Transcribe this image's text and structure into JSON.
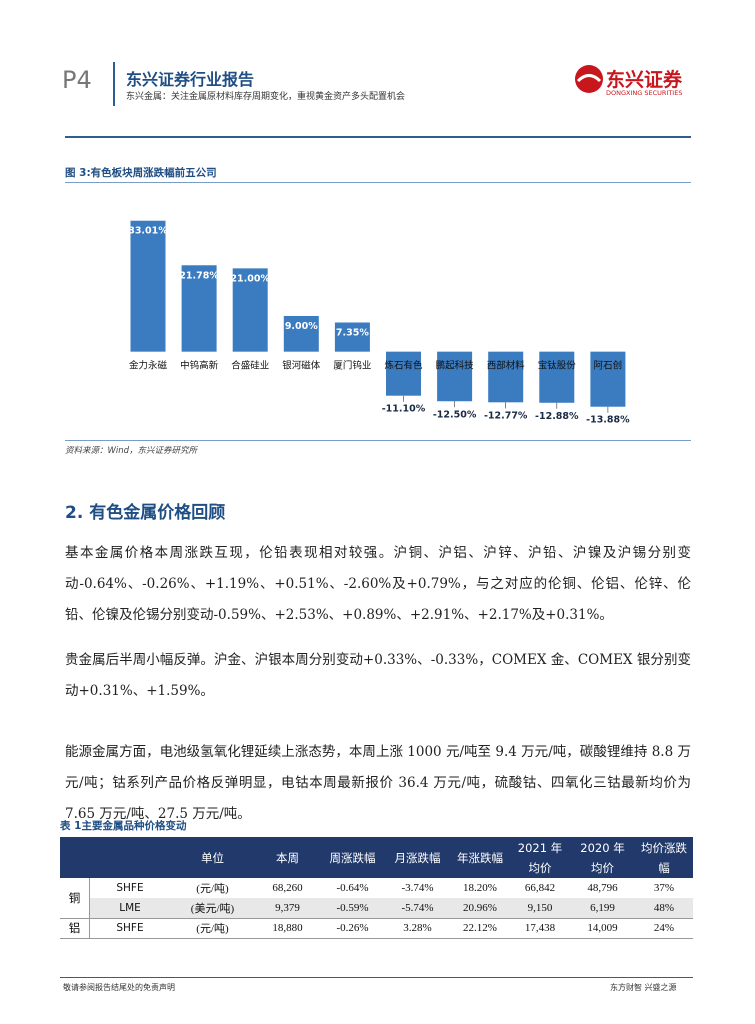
{
  "header": {
    "page": "P4",
    "title": "东兴证券行业报告",
    "subtitle": "东兴金属：关注金属原材料库存周期变化，重视黄金资产多头配置机会",
    "logo": "东兴证券",
    "logo_en": "DONGXING SECURITIES"
  },
  "figure": {
    "caption": "图 3:有色板块周涨跌幅前五公司",
    "source": "资料来源：Wind，东兴证券研究所",
    "chart_data": {
      "type": "bar",
      "categories": [
        "金力永磁",
        "中钨高新",
        "合盛硅业",
        "银河磁体",
        "厦门钨业",
        "炼石有色",
        "鹏起科技",
        "西部材料",
        "宝钛股份",
        "阿石创"
      ],
      "values": [
        33.01,
        21.78,
        21.0,
        9.0,
        7.35,
        -11.1,
        -12.5,
        -12.77,
        -12.88,
        -13.88
      ],
      "value_labels": [
        "33.01%",
        "21.78%",
        "21.00%",
        "9.00%",
        "7.35%",
        "-11.10%",
        "-12.50%",
        "-12.77%",
        "-12.88%",
        "-13.88%"
      ],
      "color": "#3b7bbf",
      "ylim": [
        -20,
        40
      ]
    }
  },
  "section": {
    "heading": "2. 有色金属价格回顾",
    "paragraphs": [
      "基本金属价格本周涨跌互现，伦铅表现相对较强。沪铜、沪铝、沪锌、沪铅、沪镍及沪锡分别变动-0.64%、-0.26%、+1.19%、+0.51%、-2.60%及+0.79%，与之对应的伦铜、伦铝、伦锌、伦铅、伦镍及伦锡分别变动-0.59%、+2.53%、+0.89%、+2.91%、+2.17%及+0.31%。",
      "贵金属后半周小幅反弹。沪金、沪银本周分别变动+0.33%、-0.33%，COMEX 金、COMEX 银分别变动+0.31%、+1.59%。",
      "能源金属方面，电池级氢氧化锂延续上涨态势，本周上涨 1000 元/吨至 9.4 万元/吨，碳酸锂维持 8.8 万元/吨；钴系列产品价格反弹明显，电钴本周最新报价 36.4 万元/吨，硫酸钴、四氧化三钴最新均价为 7.65 万元/吨、27.5 万元/吨。"
    ]
  },
  "table": {
    "caption": "表 1主要金属品种价格变动",
    "header": [
      "单位",
      "本周",
      "周涨跌幅",
      "月涨跌幅",
      "年涨跌幅",
      "2021 年均价",
      "2020 年均价",
      "均价涨跌幅"
    ],
    "groups": [
      {
        "metal": "铜",
        "rows": [
          [
            "SHFE",
            "(元/吨)",
            "68,260",
            "-0.64%",
            "-3.74%",
            "18.20%",
            "66,842",
            "48,796",
            "37%"
          ],
          [
            "LME",
            "(美元/吨)",
            "9,379",
            "-0.59%",
            "-5.74%",
            "20.96%",
            "9,150",
            "6,199",
            "48%"
          ]
        ]
      },
      {
        "metal": "铝",
        "rows": [
          [
            "SHFE",
            "(元/吨)",
            "18,880",
            "-0.26%",
            "3.28%",
            "22.12%",
            "17,438",
            "14,009",
            "24%"
          ]
        ]
      }
    ]
  },
  "footer": {
    "left": "敬请参阅报告结尾处的免责声明",
    "right": "东方财智 兴盛之源"
  }
}
